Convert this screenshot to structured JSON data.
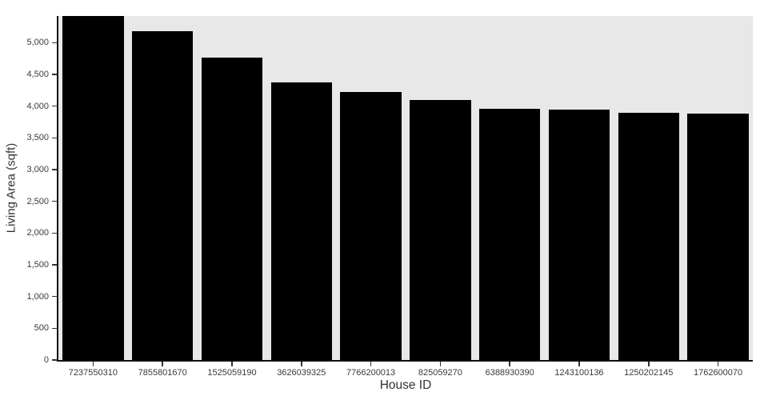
{
  "chart_data": {
    "type": "bar",
    "title": "",
    "xlabel": "House ID",
    "ylabel": "Living Area (sqft)",
    "categories": [
      "7237550310",
      "7855801670",
      "1525059190",
      "3626039325",
      "7766200013",
      "825059270",
      "6388930390",
      "1243100136",
      "1250202145",
      "1762600070"
    ],
    "values": [
      5420,
      5180,
      4770,
      4380,
      4220,
      4100,
      3960,
      3950,
      3900,
      3880
    ],
    "ylim": [
      0,
      5420
    ],
    "yticks": [
      0,
      500,
      1000,
      1500,
      2000,
      2500,
      3000,
      3500,
      4000,
      4500,
      5000
    ],
    "ytick_labels": [
      "0",
      "500",
      "1,000",
      "1,500",
      "2,000",
      "2,500",
      "3,000",
      "3,500",
      "4,000",
      "4,500",
      "5,000"
    ],
    "grid": false,
    "legend": false,
    "colors": {
      "bar": "#000000",
      "panel_bg": "#e8e8e8",
      "axis_line": "#111111",
      "tick_mark": "#333333",
      "tick_label": "#3a3a3a",
      "axis_title": "#333333"
    }
  }
}
